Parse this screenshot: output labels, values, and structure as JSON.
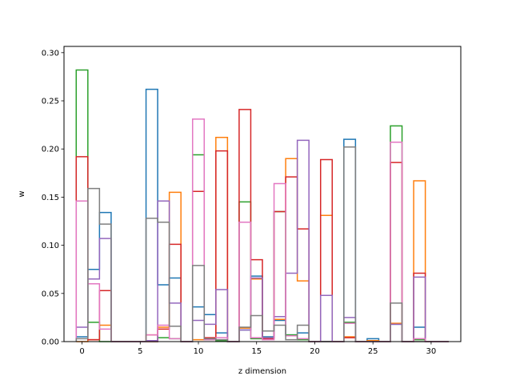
{
  "chart_data": {
    "type": "step histogram",
    "title": "",
    "xlabel": "z dimension",
    "ylabel": "w",
    "xlim": [
      -1.55,
      32.55
    ],
    "ylim": [
      0,
      0.3065
    ],
    "xticks": [
      0,
      5,
      10,
      15,
      20,
      25,
      30
    ],
    "yticks": [
      0.0,
      0.05,
      0.1,
      0.15,
      0.2,
      0.25,
      0.3
    ],
    "xtick_labels": [
      "0",
      "5",
      "10",
      "15",
      "20",
      "25",
      "30"
    ],
    "ytick_labels": [
      "0.00",
      "0.05",
      "0.10",
      "0.15",
      "0.20",
      "0.25",
      "0.30"
    ],
    "grid": false,
    "bin_edges": [
      -0.5,
      0.5,
      1.5,
      2.5,
      3.5,
      4.5,
      5.5,
      6.5,
      7.5,
      8.5,
      9.5,
      10.5,
      11.5,
      12.5,
      13.5,
      14.5,
      15.5,
      16.5,
      17.5,
      18.5,
      19.5,
      20.5,
      21.5,
      22.5,
      23.5,
      24.5,
      25.5,
      26.5,
      27.5,
      28.5,
      29.5,
      30.5,
      31.5
    ],
    "series": [
      {
        "color": "#1f77b4",
        "values": [
          0.005,
          0.075,
          0.134,
          0,
          0,
          0,
          0.262,
          0.059,
          0.066,
          0,
          0.036,
          0.028,
          0.009,
          0,
          0.012,
          0.068,
          0.005,
          0.022,
          0.007,
          0.009,
          0,
          0,
          0,
          0.21,
          0,
          0.003,
          0,
          0.018,
          0,
          0.015,
          0,
          0
        ]
      },
      {
        "color": "#ff7f0e",
        "values": [
          0,
          0.002,
          0.017,
          0,
          0,
          0,
          0.007,
          0.015,
          0.155,
          0,
          0.002,
          0.003,
          0.212,
          0,
          0.014,
          0.065,
          0.004,
          0.023,
          0.19,
          0.063,
          0,
          0.131,
          0,
          0.005,
          0,
          0.001,
          0,
          0.019,
          0,
          0.167,
          0,
          0
        ]
      },
      {
        "color": "#2ca02c",
        "values": [
          0.282,
          0.02,
          0,
          0,
          0,
          0,
          0,
          0.004,
          0.003,
          0,
          0.194,
          0.002,
          0.001,
          0,
          0.145,
          0.003,
          0.004,
          0.135,
          0.007,
          0.002,
          0,
          0,
          0,
          0.02,
          0,
          0,
          0,
          0.224,
          0,
          0.002,
          0,
          0
        ]
      },
      {
        "color": "#d62728",
        "values": [
          0.192,
          0.002,
          0.053,
          0,
          0,
          0,
          0,
          0.013,
          0.101,
          0,
          0.156,
          0.004,
          0.198,
          0,
          0.241,
          0.085,
          0.003,
          0.135,
          0.171,
          0.117,
          0,
          0.189,
          0,
          0.004,
          0,
          0,
          0,
          0.186,
          0,
          0.071,
          0,
          0
        ]
      },
      {
        "color": "#9467bd",
        "values": [
          0.015,
          0.065,
          0.107,
          0,
          0,
          0,
          0.001,
          0.146,
          0.04,
          0,
          0.022,
          0.018,
          0.054,
          0,
          0.012,
          0.066,
          0.004,
          0.026,
          0.071,
          0.209,
          0,
          0.048,
          0,
          0.025,
          0,
          0,
          0,
          0.018,
          0,
          0.067,
          0,
          0
        ]
      },
      {
        "color": "#e377c2",
        "values": [
          0.146,
          0.06,
          0.013,
          0,
          0,
          0,
          0.007,
          0.017,
          0.003,
          0,
          0.231,
          0.002,
          0.004,
          0,
          0.124,
          0.004,
          0.002,
          0.164,
          0.006,
          0.003,
          0,
          0,
          0,
          0.019,
          0,
          0,
          0,
          0.207,
          0,
          0.003,
          0,
          0
        ]
      },
      {
        "color": "#7f7f7f",
        "values": [
          0.003,
          0.159,
          0.122,
          0,
          0,
          0,
          0.128,
          0.124,
          0.016,
          0,
          0.079,
          0.003,
          0.002,
          0,
          0.015,
          0.027,
          0.011,
          0.017,
          0.002,
          0.017,
          0,
          0,
          0,
          0.202,
          0,
          0,
          0,
          0.04,
          0,
          0,
          0,
          0
        ]
      }
    ]
  }
}
